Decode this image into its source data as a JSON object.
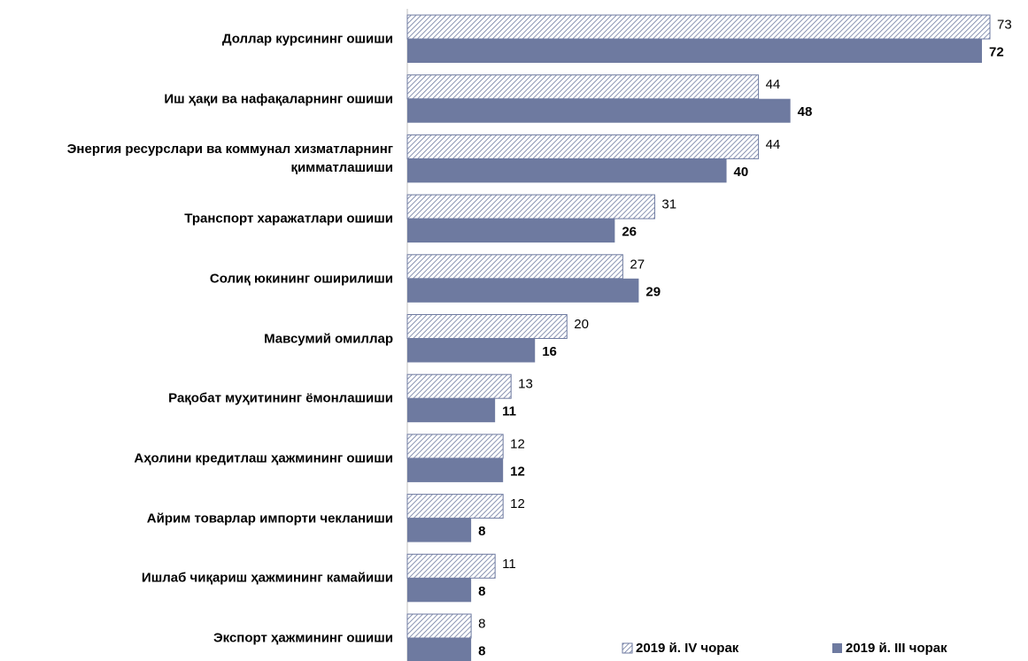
{
  "chart_data": {
    "type": "bar",
    "orientation": "horizontal",
    "categories": [
      "Доллар курсининг ошиши",
      "Иш ҳақи ва нафақаларнинг ошиши",
      "Энергия ресурслари ва коммунал хизматларнинг қимматлашиши",
      "Транспорт харажатлари ошиши",
      "Солиқ юкининг оширилиши",
      "Мавсумий омиллар",
      "Рақобат муҳитининг ёмонлашиши",
      "Аҳолини кредитлаш ҳажмининг ошиши",
      "Айрим товарлар импорти чекланиши",
      "Ишлаб чиқариш ҳажмининг камайиши",
      "Экспорт ҳажмининг ошиши"
    ],
    "series": [
      {
        "name": "2019 й. IV чорак",
        "color": "#6e7aa0",
        "pattern": "hatch",
        "values": [
          73,
          44,
          44,
          31,
          27,
          20,
          13,
          12,
          12,
          11,
          8
        ]
      },
      {
        "name": "2019 й. III чорак",
        "color": "#6e7aa0",
        "pattern": "solid",
        "values": [
          72,
          48,
          40,
          26,
          29,
          16,
          11,
          12,
          8,
          8,
          8
        ]
      }
    ],
    "legend": "bottom-right"
  }
}
